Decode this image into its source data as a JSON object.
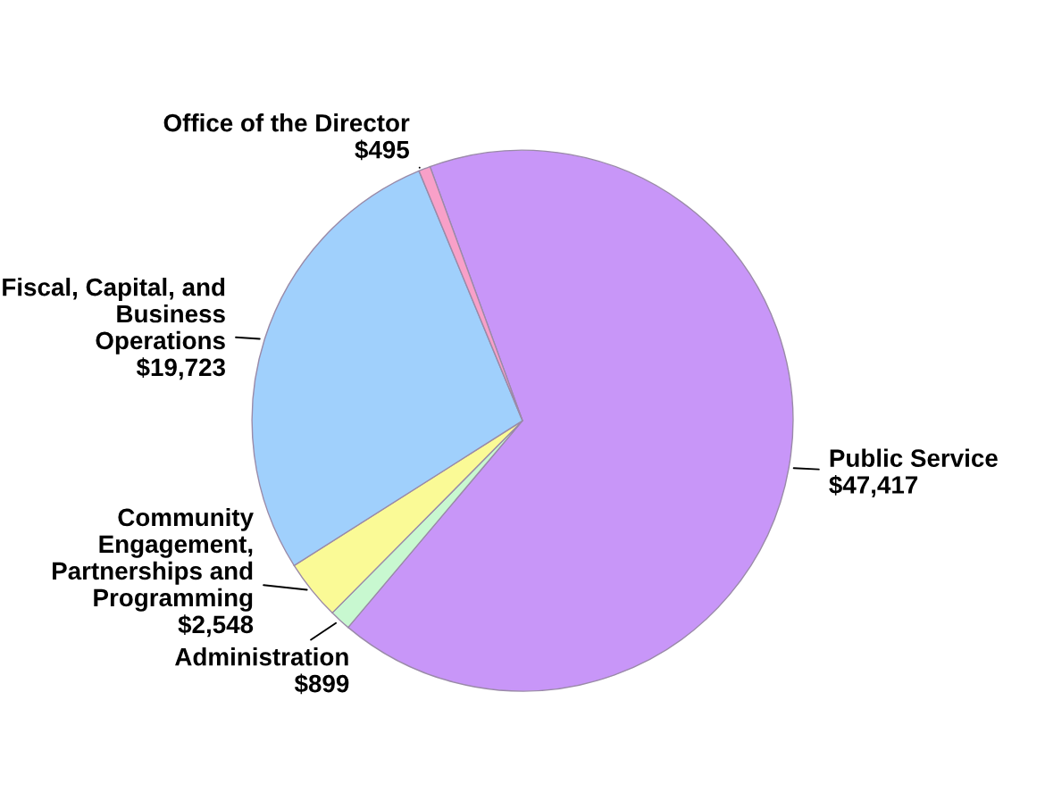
{
  "chart_data": {
    "type": "pie",
    "categories": [
      "Public Service",
      "Administration",
      "Community Engagement, Partnerships and Programming",
      "Fiscal, Capital, and Business Operations",
      "Office of the Director"
    ],
    "values": [
      47417,
      899,
      2548,
      19723,
      495
    ],
    "value_labels": [
      "$47,417",
      "$899",
      "$2,548",
      "$19,723",
      "$495"
    ],
    "colors": [
      "#c896f8",
      "#c8f8d0",
      "#fafa96",
      "#a0d0fc",
      "#f8a0c8"
    ],
    "legend": false
  }
}
